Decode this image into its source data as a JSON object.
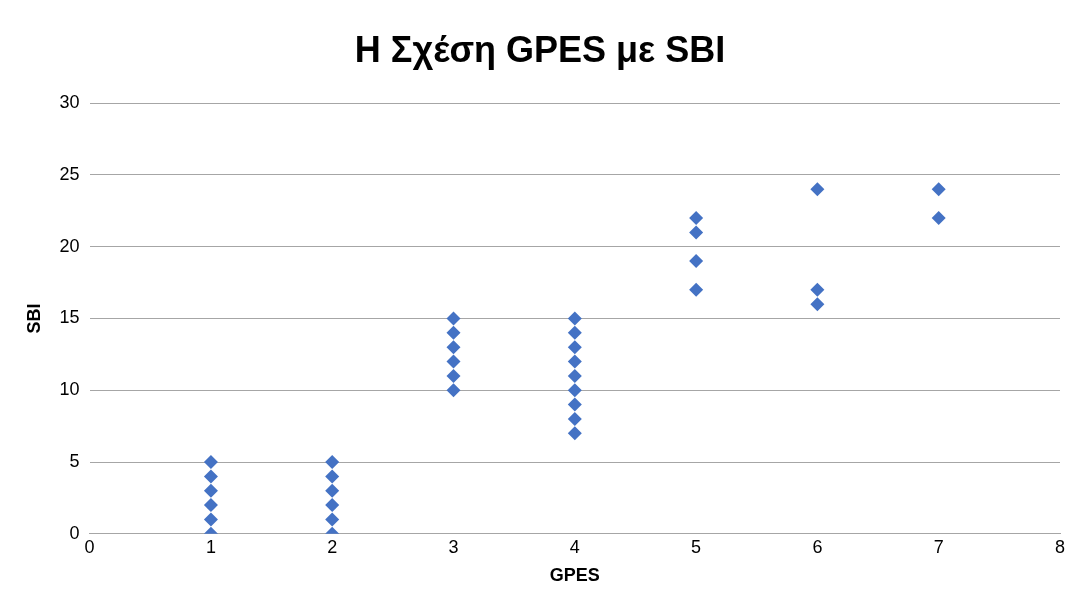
{
  "chart_data": {
    "type": "scatter",
    "title": "Η Σχέση GPES με SBI",
    "xlabel": "GPES",
    "ylabel": "SBI",
    "x": [
      1,
      1,
      1,
      1,
      1,
      1,
      2,
      2,
      2,
      2,
      2,
      2,
      3,
      3,
      3,
      3,
      3,
      3,
      4,
      4,
      4,
      4,
      4,
      4,
      4,
      4,
      4,
      5,
      5,
      5,
      5,
      6,
      6,
      6,
      7,
      7
    ],
    "values": [
      0,
      1,
      2,
      3,
      4,
      5,
      0,
      1,
      2,
      3,
      4,
      5,
      10,
      11,
      12,
      13,
      14,
      15,
      7,
      8,
      9,
      10,
      11,
      12,
      13,
      14,
      15,
      17,
      19,
      21,
      22,
      16,
      17,
      24,
      22,
      24
    ],
    "color": "#4472c4",
    "marker": "diamond",
    "xlim": [
      0,
      8
    ],
    "xticks": [
      0,
      1,
      2,
      3,
      4,
      5,
      6,
      7,
      8
    ],
    "ylim": [
      0,
      30
    ],
    "yticks": [
      0,
      5,
      10,
      15,
      20,
      25,
      30
    ],
    "grid": "y",
    "legend": false
  }
}
